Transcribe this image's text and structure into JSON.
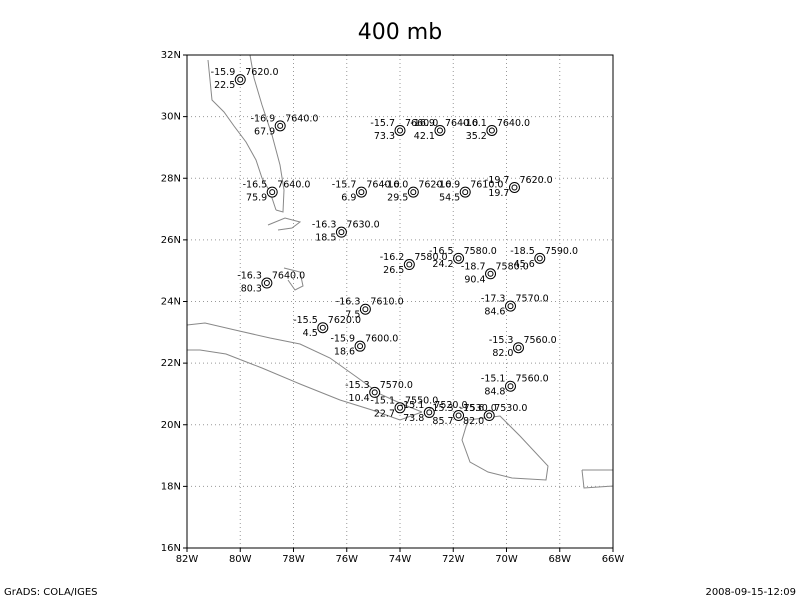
{
  "map": {
    "title": "400 mb",
    "footer_left": "GrADS: COLA/IGES",
    "footer_right": "2008-09-15-12:09",
    "xlim": [
      -82,
      -66
    ],
    "ylim": [
      16,
      32
    ],
    "xticks": [
      {
        "value": -82,
        "label": "82W"
      },
      {
        "value": -80,
        "label": "80W"
      },
      {
        "value": -78,
        "label": "78W"
      },
      {
        "value": -76,
        "label": "76W"
      },
      {
        "value": -74,
        "label": "74W"
      },
      {
        "value": -72,
        "label": "72W"
      },
      {
        "value": -70,
        "label": "70W"
      },
      {
        "value": -68,
        "label": "68W"
      },
      {
        "value": -66,
        "label": "66W"
      }
    ],
    "yticks": [
      {
        "value": 16,
        "label": "16N"
      },
      {
        "value": 18,
        "label": "18N"
      },
      {
        "value": 20,
        "label": "20N"
      },
      {
        "value": 22,
        "label": "22N"
      },
      {
        "value": 24,
        "label": "24N"
      },
      {
        "value": 26,
        "label": "26N"
      },
      {
        "value": 28,
        "label": "28N"
      },
      {
        "value": 30,
        "label": "30N"
      },
      {
        "value": 32,
        "label": "32N"
      }
    ],
    "grid": true,
    "stations": [
      {
        "lon": -80.0,
        "lat": 31.2,
        "temp": "-15.9",
        "height": "7620.0",
        "value": "22.5"
      },
      {
        "lon": -78.5,
        "lat": 29.7,
        "temp": "-16.9",
        "height": "7640.0",
        "value": "67.9"
      },
      {
        "lon": -78.8,
        "lat": 27.55,
        "temp": "-16.5",
        "height": "7640.0",
        "value": "75.9"
      },
      {
        "lon": -76.2,
        "lat": 26.25,
        "temp": "-16.3",
        "height": "7630.0",
        "value": "18.5"
      },
      {
        "lon": -79.0,
        "lat": 24.6,
        "temp": "-16.3",
        "height": "7640.0",
        "value": "80.3"
      },
      {
        "lon": -75.3,
        "lat": 23.75,
        "temp": "-16.3",
        "height": "7610.0",
        "value": "7.5"
      },
      {
        "lon": -76.9,
        "lat": 23.15,
        "temp": "-15.5",
        "height": "7620.0",
        "value": "4.5"
      },
      {
        "lon": -75.5,
        "lat": 22.55,
        "temp": "-15.9",
        "height": "7600.0",
        "value": "18.6"
      },
      {
        "lon": -74.95,
        "lat": 21.05,
        "temp": "-15.3",
        "height": "7570.0",
        "value": "10.4"
      },
      {
        "lon": -74.0,
        "lat": 20.55,
        "temp": "-15.1",
        "height": "7550.0",
        "value": "22.7"
      },
      {
        "lon": -75.45,
        "lat": 27.55,
        "temp": "-15.7",
        "height": "7640.0",
        "value": "6.9"
      },
      {
        "lon": -73.5,
        "lat": 27.55,
        "temp": "-16.0",
        "height": "7620.0",
        "value": "29.5"
      },
      {
        "lon": -71.55,
        "lat": 27.55,
        "temp": "-16.9",
        "height": "7610.0",
        "value": "54.5"
      },
      {
        "lon": -69.7,
        "lat": 27.7,
        "temp": "-19.7",
        "height": "7620.0",
        "value": "19.7"
      },
      {
        "lon": -74.0,
        "lat": 29.55,
        "temp": "-15.7",
        "height": "7660.0",
        "value": "73.3"
      },
      {
        "lon": -72.5,
        "lat": 29.55,
        "temp": "-16.9",
        "height": "7640.0",
        "value": "42.1"
      },
      {
        "lon": -70.55,
        "lat": 29.55,
        "temp": "-16.1",
        "height": "7640.0",
        "value": "35.2"
      },
      {
        "lon": -71.8,
        "lat": 25.4,
        "temp": "-16.5",
        "height": "7580.0",
        "value": "24.2"
      },
      {
        "lon": -70.6,
        "lat": 24.9,
        "temp": "-18.7",
        "height": "7580.0",
        "value": "90.4"
      },
      {
        "lon": -68.75,
        "lat": 25.4,
        "temp": "-18.5",
        "height": "7590.0",
        "value": "45.6"
      },
      {
        "lon": -69.85,
        "lat": 23.85,
        "temp": "-17.3",
        "height": "7570.0",
        "value": "84.6"
      },
      {
        "lon": -69.55,
        "lat": 22.5,
        "temp": "-15.3",
        "height": "7560.0",
        "value": "82.0"
      },
      {
        "lon": -69.85,
        "lat": 21.25,
        "temp": "-15.1",
        "height": "7560.0",
        "value": "84.8"
      },
      {
        "lon": -72.9,
        "lat": 20.4,
        "temp": "-15.1",
        "height": "7520.0",
        "value": "73.8"
      },
      {
        "lon": -71.8,
        "lat": 20.3,
        "temp": "-15.3",
        "height": "7530.0",
        "value": "85.7"
      },
      {
        "lon": -70.65,
        "lat": 20.3,
        "temp": "-15.6",
        "height": "7530.0",
        "value": "82.0"
      },
      {
        "lon": -73.65,
        "lat": 25.2,
        "temp": "-16.2",
        "height": "7580.0",
        "value": "26.5"
      }
    ]
  }
}
